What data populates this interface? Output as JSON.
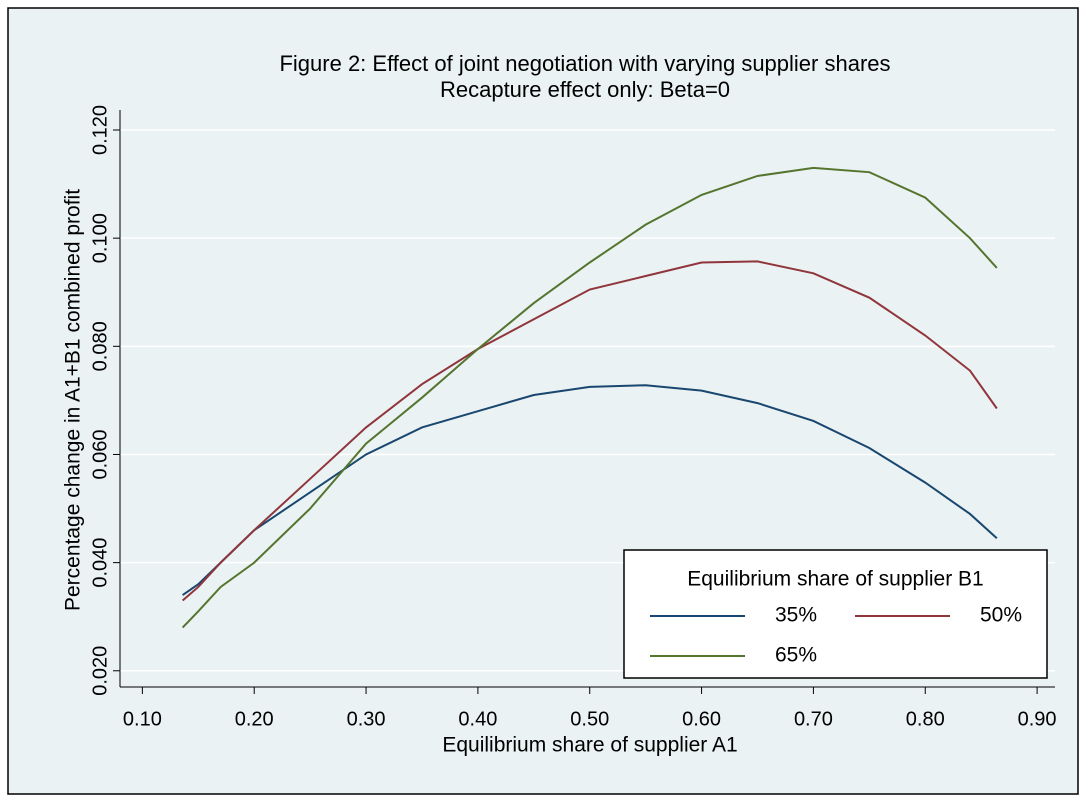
{
  "chart_data": {
    "type": "line",
    "title": "Figure 2: Effect of joint negotiation with varying supplier shares",
    "subtitle": "Recapture effect only: Beta=0",
    "x_label": "Equilibrium share of supplier A1",
    "y_label": "Percentage change in A1+B1 combined profit",
    "legend_title": "Equilibrium share of supplier B1",
    "x": [
      0.136,
      0.15,
      0.17,
      0.2,
      0.25,
      0.3,
      0.35,
      0.4,
      0.45,
      0.5,
      0.55,
      0.6,
      0.65,
      0.7,
      0.75,
      0.8,
      0.84,
      0.864
    ],
    "series": [
      {
        "name": "35%",
        "color": "#1a476f",
        "values": [
          0.034,
          0.036,
          0.04,
          0.046,
          0.053,
          0.06,
          0.065,
          0.068,
          0.071,
          0.0725,
          0.0728,
          0.0718,
          0.0695,
          0.0662,
          0.0612,
          0.0548,
          0.049,
          0.0445
        ]
      },
      {
        "name": "50%",
        "color": "#90353b",
        "values": [
          0.033,
          0.0355,
          0.04,
          0.046,
          0.0555,
          0.065,
          0.073,
          0.0795,
          0.085,
          0.0905,
          0.093,
          0.0955,
          0.0957,
          0.0935,
          0.089,
          0.082,
          0.0755,
          0.0685
        ]
      },
      {
        "name": "65%",
        "color": "#55752f",
        "values": [
          0.028,
          0.031,
          0.0355,
          0.04,
          0.05,
          0.062,
          0.0705,
          0.0795,
          0.088,
          0.0955,
          0.1025,
          0.108,
          0.1115,
          0.113,
          0.1122,
          0.1075,
          0.1,
          0.0945
        ]
      }
    ],
    "xlim": [
      0.08,
      0.916
    ],
    "ylim": [
      0.017,
      0.1237
    ],
    "xticks": [
      {
        "value": 0.1,
        "label": "0.10"
      },
      {
        "value": 0.2,
        "label": "0.20"
      },
      {
        "value": 0.3,
        "label": "0.30"
      },
      {
        "value": 0.4,
        "label": "0.40"
      },
      {
        "value": 0.5,
        "label": "0.50"
      },
      {
        "value": 0.6,
        "label": "0.60"
      },
      {
        "value": 0.7,
        "label": "0.70"
      },
      {
        "value": 0.8,
        "label": "0.80"
      },
      {
        "value": 0.9,
        "label": "0.90"
      }
    ],
    "yticks": [
      {
        "value": 0.02,
        "label": "0.020"
      },
      {
        "value": 0.04,
        "label": "0.040"
      },
      {
        "value": 0.06,
        "label": "0.060"
      },
      {
        "value": 0.08,
        "label": "0.080"
      },
      {
        "value": 0.1,
        "label": "0.100"
      },
      {
        "value": 0.12,
        "label": "0.120"
      }
    ],
    "grid": true,
    "legend_position": "lower right"
  }
}
